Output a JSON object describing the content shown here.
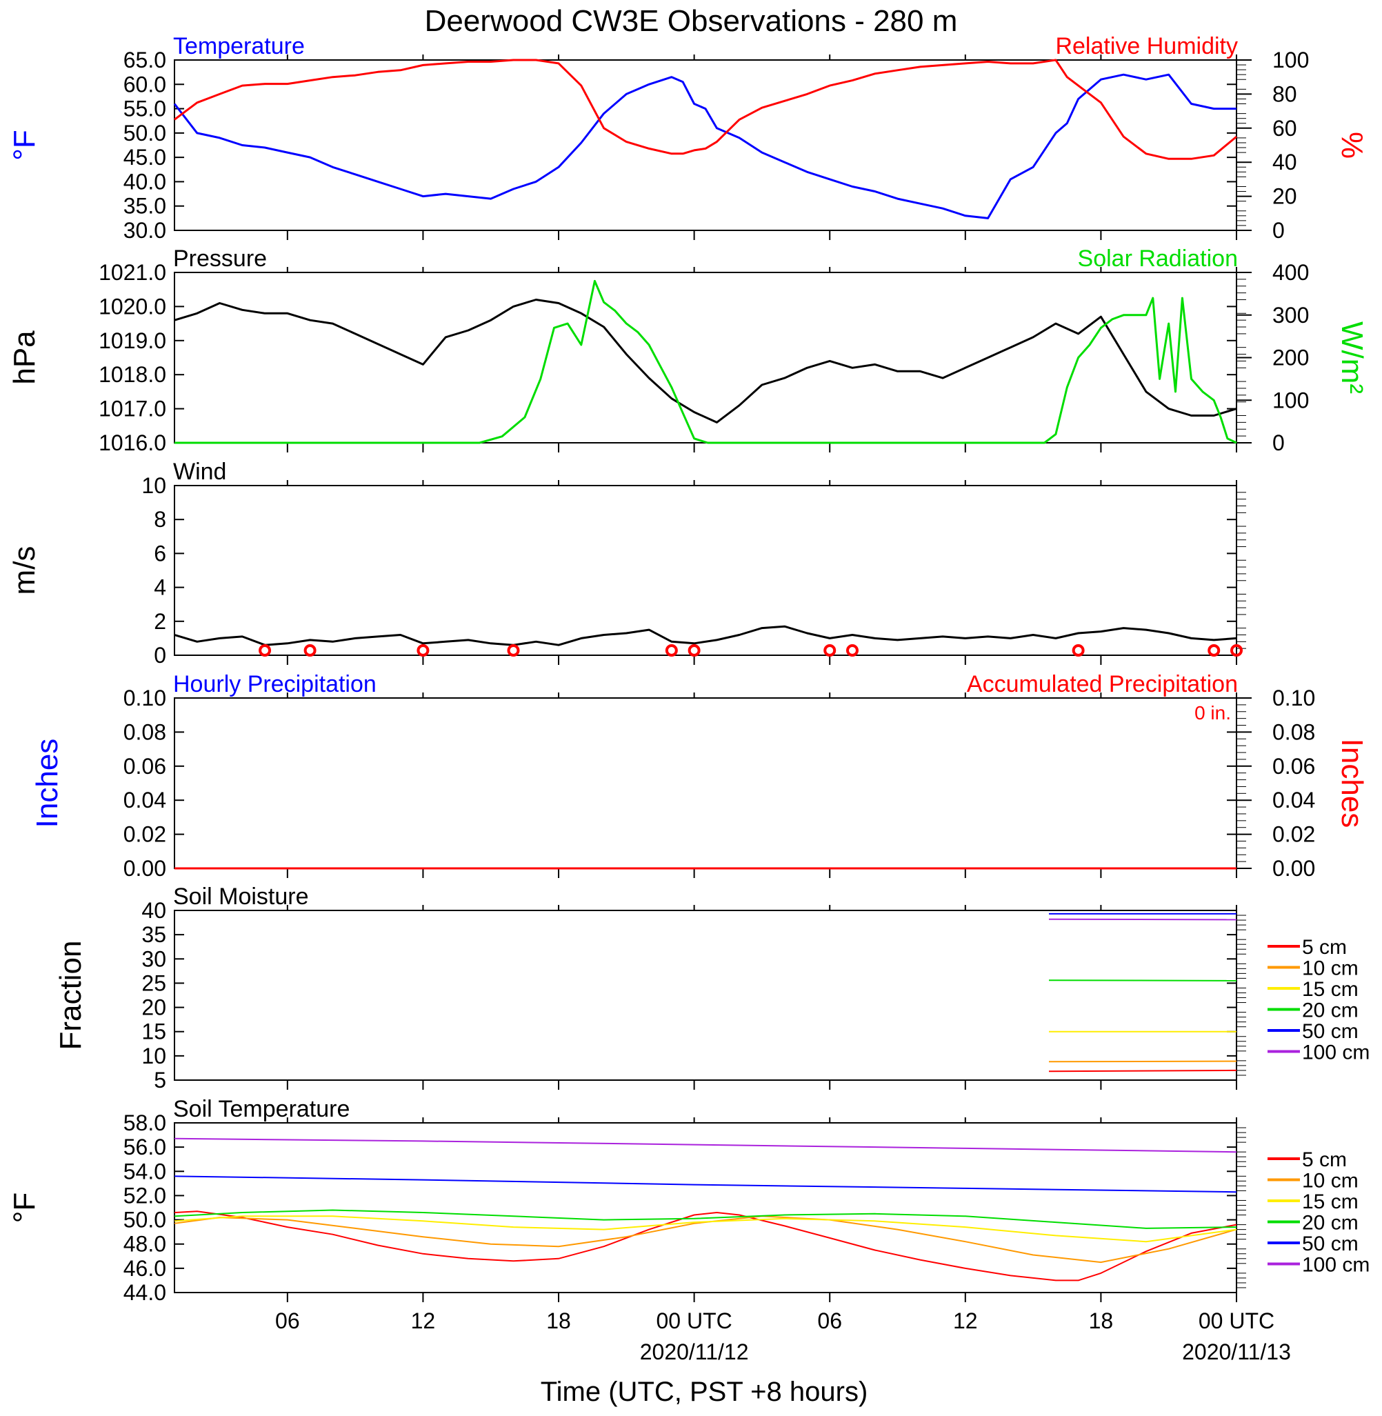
{
  "title": "Deerwood CW3E Observations - 280 m",
  "xlabel": "Time (UTC, PST +8 hours)",
  "x_ticks": [
    {
      "h": 6,
      "label": "06"
    },
    {
      "h": 12,
      "label": "12"
    },
    {
      "h": 18,
      "label": "18"
    },
    {
      "h": 24,
      "label": "00 UTC",
      "date": "2020/11/12"
    },
    {
      "h": 30,
      "label": "06"
    },
    {
      "h": 36,
      "label": "12"
    },
    {
      "h": 42,
      "label": "18"
    },
    {
      "h": 48,
      "label": "00 UTC",
      "date": "2020/11/13"
    }
  ],
  "x_range_hours": [
    1,
    48.0
  ],
  "colors": {
    "blue": "#0000ff",
    "red": "#ff0000",
    "green": "#00dd00",
    "black": "#000000",
    "orange": "#ff9900",
    "yellow": "#ffee00",
    "purple": "#aa22dd"
  },
  "chart_data": [
    {
      "type": "line",
      "name": "temp_rh",
      "left_title": "Temperature",
      "right_title": "Relative Humidity",
      "ylabel_left": "°F",
      "ylabel_right": "%",
      "ylim_left": [
        30,
        65
      ],
      "ylim_right": [
        0,
        100
      ],
      "yticks_left": [
        "30.0",
        "35.0",
        "40.0",
        "45.0",
        "50.0",
        "55.0",
        "60.0",
        "65.0"
      ],
      "yticks_right": [
        "0",
        "20",
        "40",
        "60",
        "80",
        "100"
      ],
      "series": [
        {
          "axis": "left",
          "color": "blue",
          "x": [
            1,
            2,
            3,
            4,
            5,
            6,
            7,
            8,
            9,
            10,
            11,
            12,
            13,
            14,
            15,
            16,
            17,
            18,
            19,
            20,
            21,
            22,
            23,
            23.5,
            24,
            24.5,
            25,
            26,
            27,
            28,
            29,
            30,
            31,
            32,
            33,
            34,
            35,
            36,
            37,
            38,
            39,
            40,
            40.5,
            41,
            42,
            43,
            44,
            45,
            46,
            47,
            48
          ],
          "y": [
            56,
            50,
            49,
            47.5,
            47,
            46,
            45,
            43,
            41.5,
            40,
            38.5,
            37,
            37.5,
            37,
            36.5,
            38.5,
            40,
            43,
            48,
            54,
            58,
            60,
            61.5,
            60.5,
            56,
            55,
            51,
            49,
            46,
            44,
            42,
            40.5,
            39,
            38,
            36.5,
            35.5,
            34.5,
            33,
            32.5,
            40.5,
            43,
            50,
            52,
            57,
            61,
            62,
            61,
            62,
            56,
            55,
            55
          ]
        },
        {
          "axis": "right",
          "color": "red",
          "x": [
            1,
            2,
            3,
            4,
            5,
            6,
            7,
            8,
            9,
            10,
            11,
            12,
            13,
            14,
            15,
            16,
            17,
            18,
            19,
            20,
            21,
            22,
            23,
            23.5,
            24,
            24.5,
            25,
            26,
            27,
            28,
            29,
            30,
            31,
            32,
            33,
            34,
            35,
            36,
            37,
            38,
            39,
            40,
            40.5,
            41,
            42,
            43,
            44,
            45,
            46,
            47,
            48
          ],
          "y": [
            65,
            75,
            80,
            85,
            86,
            86,
            88,
            90,
            91,
            93,
            94,
            97,
            98,
            99,
            99,
            100,
            100,
            98,
            85,
            60,
            52,
            48,
            45,
            45,
            47,
            48,
            52,
            65,
            72,
            76,
            80,
            85,
            88,
            92,
            94,
            96,
            97,
            98,
            99,
            98,
            98,
            100,
            90,
            85,
            75,
            55,
            45,
            42,
            42,
            44,
            55
          ]
        }
      ]
    },
    {
      "type": "line",
      "name": "pressure_solar",
      "left_title": "Pressure",
      "right_title": "Solar Radiation",
      "ylabel_left": "hPa",
      "ylabel_right": "W/m²",
      "ylim_left": [
        1016,
        1021
      ],
      "ylim_right": [
        0,
        400
      ],
      "yticks_left": [
        "1016.0",
        "1017.0",
        "1018.0",
        "1019.0",
        "1020.0",
        "1021.0"
      ],
      "yticks_right": [
        "0",
        "100",
        "200",
        "300",
        "400"
      ],
      "series": [
        {
          "axis": "left",
          "color": "black",
          "x": [
            1,
            2,
            3,
            4,
            5,
            6,
            7,
            8,
            9,
            10,
            11,
            12,
            13,
            14,
            15,
            16,
            17,
            18,
            19,
            20,
            21,
            22,
            23,
            24,
            25,
            26,
            27,
            28,
            29,
            30,
            31,
            32,
            33,
            34,
            35,
            36,
            37,
            38,
            39,
            40,
            41,
            42,
            43,
            44,
            45,
            46,
            47,
            48
          ],
          "y": [
            1019.6,
            1019.8,
            1020.1,
            1019.9,
            1019.8,
            1019.8,
            1019.6,
            1019.5,
            1019.2,
            1018.9,
            1018.6,
            1018.3,
            1019.1,
            1019.3,
            1019.6,
            1020.0,
            1020.2,
            1020.1,
            1019.8,
            1019.4,
            1018.6,
            1017.9,
            1017.3,
            1016.9,
            1016.6,
            1017.1,
            1017.7,
            1017.9,
            1018.2,
            1018.4,
            1018.2,
            1018.3,
            1018.1,
            1018.1,
            1017.9,
            1018.2,
            1018.5,
            1018.8,
            1019.1,
            1019.5,
            1019.2,
            1019.7,
            1018.6,
            1017.5,
            1017.0,
            1016.8,
            1016.8,
            1017.0
          ]
        },
        {
          "axis": "right",
          "color": "green",
          "x": [
            1,
            14.5,
            15.5,
            16.5,
            17.2,
            17.8,
            18.4,
            19.0,
            19.6,
            20.0,
            20.5,
            21.0,
            21.5,
            22.0,
            22.5,
            23.0,
            23.5,
            24.0,
            24.3,
            24.6,
            25,
            39.5,
            40.0,
            40.5,
            41.0,
            41.5,
            42.0,
            42.5,
            43.0,
            43.5,
            44.0,
            44.3,
            44.6,
            45.0,
            45.3,
            45.6,
            46.0,
            46.5,
            47.0,
            47.3,
            47.6,
            48.0
          ],
          "y": [
            0,
            0,
            15,
            60,
            150,
            270,
            280,
            230,
            380,
            330,
            310,
            280,
            260,
            230,
            180,
            130,
            70,
            10,
            5,
            0,
            0,
            0,
            20,
            130,
            200,
            230,
            270,
            290,
            300,
            300,
            300,
            340,
            150,
            280,
            120,
            340,
            150,
            120,
            100,
            60,
            10,
            0
          ]
        }
      ]
    },
    {
      "type": "line",
      "name": "wind",
      "left_title": "Wind",
      "ylabel_left": "m/s",
      "ylim_left": [
        0,
        10
      ],
      "yticks_left": [
        "0",
        "2",
        "4",
        "6",
        "8",
        "10"
      ],
      "series": [
        {
          "axis": "left",
          "color": "black",
          "x": [
            1,
            2,
            3,
            4,
            5,
            6,
            7,
            8,
            9,
            10,
            11,
            12,
            13,
            14,
            15,
            16,
            17,
            18,
            19,
            20,
            21,
            22,
            23,
            24,
            25,
            26,
            27,
            28,
            29,
            30,
            31,
            32,
            33,
            34,
            35,
            36,
            37,
            38,
            39,
            40,
            41,
            42,
            43,
            44,
            45,
            46,
            47,
            48
          ],
          "y": [
            1.2,
            0.8,
            1.0,
            1.1,
            0.6,
            0.7,
            0.9,
            0.8,
            1.0,
            1.1,
            1.2,
            0.7,
            0.8,
            0.9,
            0.7,
            0.6,
            0.8,
            0.6,
            1.0,
            1.2,
            1.3,
            1.5,
            0.8,
            0.7,
            0.9,
            1.2,
            1.6,
            1.7,
            1.3,
            1.0,
            1.2,
            1.0,
            0.9,
            1.0,
            1.1,
            1.0,
            1.1,
            1.0,
            1.2,
            1.0,
            1.3,
            1.4,
            1.6,
            1.5,
            1.3,
            1.0,
            0.9,
            1.0
          ]
        }
      ],
      "calm_circles_hours": [
        5,
        7,
        12,
        16,
        23,
        24,
        30,
        31,
        41,
        47,
        48
      ]
    },
    {
      "type": "line",
      "name": "precip",
      "left_title": "Hourly Precipitation",
      "right_title": "Accumulated Precipitation",
      "annotation": "0 in.",
      "ylabel_left": "Inches",
      "ylabel_right": "Inches",
      "ylim_left": [
        0,
        0.1
      ],
      "ylim_right": [
        0,
        0.1
      ],
      "yticks_left": [
        "0.00",
        "0.02",
        "0.04",
        "0.06",
        "0.08",
        "0.10"
      ],
      "yticks_right": [
        "0.00",
        "0.02",
        "0.04",
        "0.06",
        "0.08",
        "0.10"
      ],
      "series": [
        {
          "axis": "left",
          "color": "red",
          "x": [
            1,
            48
          ],
          "y": [
            0,
            0
          ]
        }
      ]
    },
    {
      "type": "line",
      "name": "soil_moisture",
      "left_title": "Soil Moisture",
      "ylabel_left": "Fraction",
      "ylim_left": [
        5,
        40
      ],
      "yticks_left": [
        "5",
        "10",
        "15",
        "20",
        "25",
        "30",
        "35",
        "40"
      ],
      "legend": [
        "5 cm",
        "10 cm",
        "15 cm",
        "20 cm",
        "50 cm",
        "100 cm"
      ],
      "series": [
        {
          "name": "5 cm",
          "color": "red",
          "x": [
            39.7,
            48
          ],
          "y": [
            6.8,
            7.0
          ]
        },
        {
          "name": "10 cm",
          "color": "orange",
          "x": [
            39.7,
            48
          ],
          "y": [
            8.8,
            8.9
          ]
        },
        {
          "name": "15 cm",
          "color": "yellow",
          "x": [
            39.7,
            48
          ],
          "y": [
            15.0,
            15.0
          ]
        },
        {
          "name": "20 cm",
          "color": "green",
          "x": [
            39.7,
            48
          ],
          "y": [
            25.6,
            25.5
          ]
        },
        {
          "name": "50 cm",
          "color": "blue",
          "x": [
            39.7,
            48
          ],
          "y": [
            39.3,
            39.3
          ]
        },
        {
          "name": "100 cm",
          "color": "purple",
          "x": [
            39.7,
            48
          ],
          "y": [
            38.2,
            38.1
          ]
        }
      ]
    },
    {
      "type": "line",
      "name": "soil_temp",
      "left_title": "Soil Temperature",
      "ylabel_left": "°F",
      "ylim_left": [
        44,
        58
      ],
      "yticks_left": [
        "44.0",
        "46.0",
        "48.0",
        "50.0",
        "52.0",
        "54.0",
        "56.0",
        "58.0"
      ],
      "legend": [
        "5 cm",
        "10 cm",
        "15 cm",
        "20 cm",
        "50 cm",
        "100 cm"
      ],
      "series": [
        {
          "name": "5 cm",
          "color": "red",
          "x": [
            1,
            2,
            4,
            6,
            8,
            10,
            12,
            14,
            16,
            18,
            20,
            22,
            24,
            25,
            26,
            28,
            30,
            32,
            34,
            36,
            38,
            40,
            41,
            42,
            44,
            46,
            48
          ],
          "y": [
            50.6,
            50.7,
            50.2,
            49.4,
            48.8,
            47.9,
            47.2,
            46.8,
            46.6,
            46.8,
            47.8,
            49.2,
            50.4,
            50.6,
            50.4,
            49.5,
            48.5,
            47.5,
            46.7,
            46.0,
            45.4,
            45.0,
            45.0,
            45.6,
            47.4,
            48.9,
            49.6
          ]
        },
        {
          "name": "10 cm",
          "color": "orange",
          "x": [
            1,
            3,
            6,
            9,
            12,
            15,
            18,
            21,
            24,
            27,
            30,
            33,
            36,
            39,
            42,
            45,
            48
          ],
          "y": [
            49.7,
            50.2,
            50.0,
            49.3,
            48.6,
            48.0,
            47.8,
            48.6,
            49.7,
            50.3,
            50.0,
            49.2,
            48.2,
            47.1,
            46.5,
            47.6,
            49.2
          ]
        },
        {
          "name": "15 cm",
          "color": "yellow",
          "x": [
            1,
            4,
            8,
            12,
            16,
            20,
            24,
            28,
            32,
            36,
            40,
            44,
            48
          ],
          "y": [
            49.9,
            50.3,
            50.3,
            49.9,
            49.4,
            49.2,
            49.8,
            50.1,
            49.9,
            49.4,
            48.7,
            48.2,
            49.2
          ]
        },
        {
          "name": "20 cm",
          "color": "green",
          "x": [
            1,
            4,
            8,
            12,
            16,
            20,
            24,
            28,
            32,
            36,
            40,
            44,
            48
          ],
          "y": [
            50.3,
            50.6,
            50.8,
            50.6,
            50.3,
            50.0,
            50.1,
            50.4,
            50.5,
            50.3,
            49.8,
            49.3,
            49.4
          ]
        },
        {
          "name": "50 cm",
          "color": "blue",
          "x": [
            1,
            12,
            24,
            36,
            48
          ],
          "y": [
            53.6,
            53.3,
            52.9,
            52.6,
            52.3
          ]
        },
        {
          "name": "100 cm",
          "color": "purple",
          "x": [
            1,
            12,
            24,
            36,
            48
          ],
          "y": [
            56.7,
            56.5,
            56.2,
            55.9,
            55.6
          ]
        }
      ]
    }
  ]
}
